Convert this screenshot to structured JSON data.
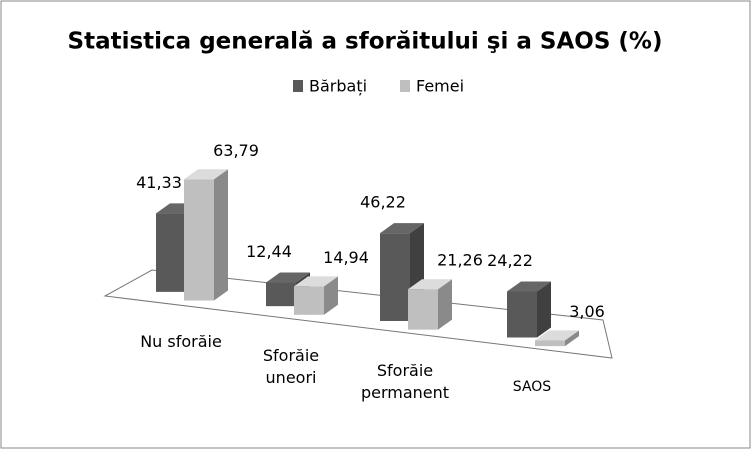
{
  "chart_data": {
    "type": "bar3d",
    "title": "Statistica generală a sforăitului şi a SAOS (%)",
    "categories": [
      "Nu sforăie",
      "Sforăie uneori",
      "Sforăie permanent",
      "SAOS"
    ],
    "series": [
      {
        "name": "Bărbați",
        "color": "#595959",
        "values": [
          41.33,
          12.44,
          46.22,
          24.22
        ],
        "value_labels": [
          "41,33",
          "12,44",
          "46,22",
          "24,22"
        ]
      },
      {
        "name": "Femei",
        "color": "#bfbfbf",
        "values": [
          63.79,
          14.94,
          21.26,
          3.06
        ],
        "value_labels": [
          "63,79",
          "14,94",
          "21,26",
          "3,06"
        ]
      }
    ],
    "legend": "top"
  }
}
